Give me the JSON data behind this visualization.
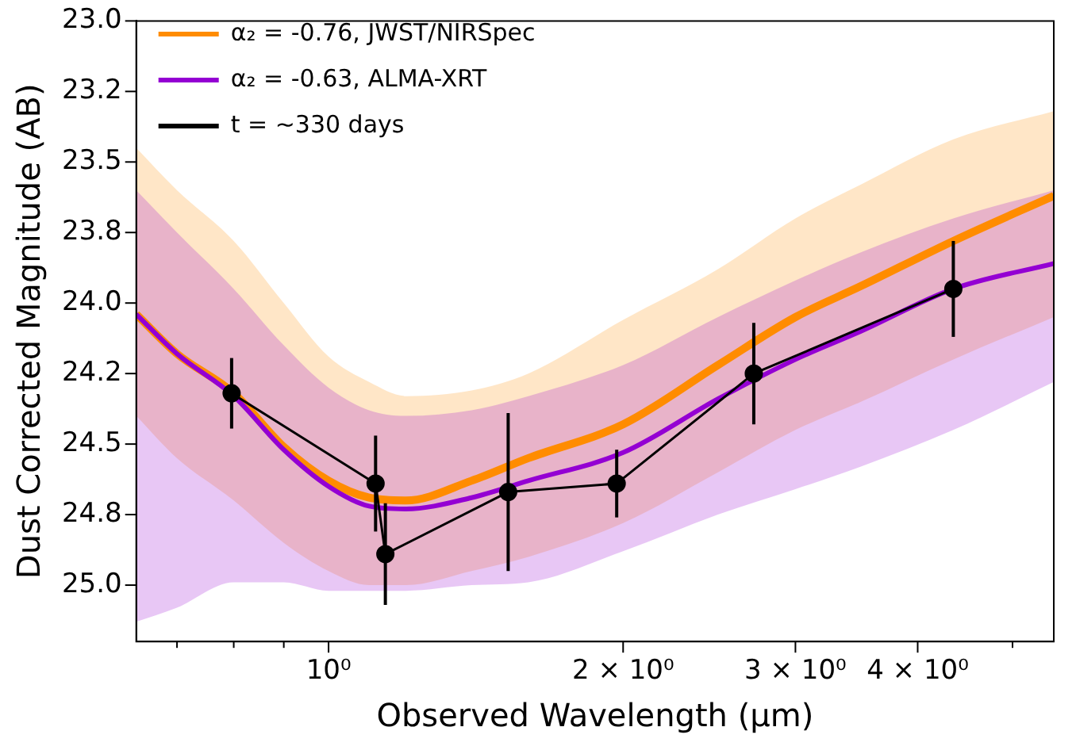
{
  "chart_data": {
    "type": "line",
    "xlabel": "Observed Wavelength (μm)",
    "ylabel": "Dust Corrected Magnitude (AB)",
    "log": "x",
    "xlim": [
      0.636,
      5.51
    ],
    "ylim": [
      25.2,
      23.0
    ],
    "xticks": [
      {
        "value": 0.7,
        "label": null
      },
      {
        "value": 0.8,
        "label": null
      },
      {
        "value": 0.9,
        "label": null
      },
      {
        "value": 1,
        "label": "10⁰"
      },
      {
        "value": 2,
        "label": "2 × 10⁰"
      },
      {
        "value": 3,
        "label": "3 × 10⁰"
      },
      {
        "value": 4,
        "label": "4 × 10⁰"
      },
      {
        "value": 5,
        "label": null
      }
    ],
    "yticks": [
      {
        "value": 23.0,
        "label": "23.0"
      },
      {
        "value": 23.25,
        "label": "23.2"
      },
      {
        "value": 23.5,
        "label": "23.5"
      },
      {
        "value": 23.75,
        "label": "23.8"
      },
      {
        "value": 24.0,
        "label": "24.0"
      },
      {
        "value": 24.25,
        "label": "24.2"
      },
      {
        "value": 24.5,
        "label": "24.5"
      },
      {
        "value": 24.75,
        "label": "24.8"
      },
      {
        "value": 25.0,
        "label": "25.0"
      }
    ],
    "grid": false,
    "legend": "top left",
    "series": [
      {
        "name": "α₂ = -0.76, JWST/NIRSpec",
        "color": "#ff8c00",
        "marker": "none",
        "x": [
          0.636,
          0.7,
          0.8,
          0.9,
          1.0,
          1.1,
          1.2,
          1.4,
          1.6,
          2.0,
          2.5,
          3.0,
          3.5,
          4.35,
          5.51
        ],
        "values": [
          24.04,
          24.18,
          24.32,
          24.51,
          24.63,
          24.69,
          24.7,
          24.63,
          24.55,
          24.43,
          24.22,
          24.05,
          23.94,
          23.78,
          23.62
        ],
        "upper": [
          23.45,
          23.6,
          23.78,
          24.0,
          24.19,
          24.28,
          24.33,
          24.31,
          24.25,
          24.06,
          23.88,
          23.7,
          23.58,
          23.42,
          23.32
        ],
        "lower": [
          24.4,
          24.55,
          24.7,
          24.85,
          24.95,
          25.0,
          25.0,
          24.95,
          24.9,
          24.78,
          24.6,
          24.45,
          24.35,
          24.2,
          24.05
        ]
      },
      {
        "name": "α₂ = -0.63, ALMA-XRT",
        "color": "#9400d3",
        "marker": "none",
        "x": [
          0.636,
          0.7,
          0.8,
          0.9,
          1.0,
          1.1,
          1.2,
          1.4,
          1.6,
          2.0,
          2.5,
          3.0,
          3.5,
          4.35,
          5.51
        ],
        "values": [
          24.04,
          24.18,
          24.33,
          24.52,
          24.65,
          24.72,
          24.73,
          24.69,
          24.63,
          24.53,
          24.34,
          24.2,
          24.1,
          23.95,
          23.86
        ],
        "upper": [
          23.6,
          23.75,
          23.95,
          24.15,
          24.3,
          24.38,
          24.4,
          24.38,
          24.33,
          24.22,
          24.05,
          23.92,
          23.82,
          23.7,
          23.6
        ],
        "lower": [
          25.13,
          25.08,
          24.99,
          24.99,
          25.02,
          25.02,
          25.02,
          25.0,
          24.99,
          24.88,
          24.75,
          24.66,
          24.58,
          24.45,
          24.28
        ]
      },
      {
        "name": "t = ~330 days",
        "color": "#000000",
        "marker": "circle",
        "x": [
          0.796,
          1.117,
          1.143,
          1.526,
          1.97,
          2.72,
          4.35
        ],
        "values": [
          24.32,
          24.64,
          24.89,
          24.67,
          24.64,
          24.25,
          23.95
        ],
        "errors": [
          0.125,
          0.17,
          0.18,
          0.28,
          0.12,
          0.18,
          0.17
        ]
      }
    ]
  }
}
